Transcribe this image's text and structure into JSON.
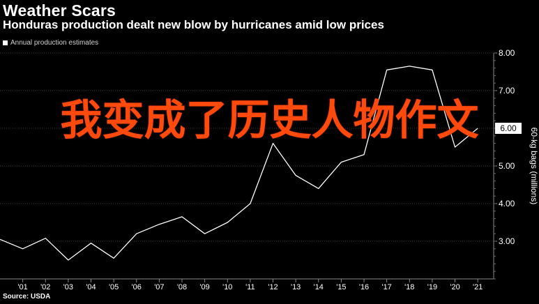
{
  "header": {
    "title": "Weather Scars",
    "subtitle": "Honduras production dealt new blow by hurricanes amid low prices",
    "legend_label": "Annual production estimates",
    "source": "Source: USDA"
  },
  "overlay_text": "我变成了历史人物作文",
  "colors": {
    "background": "#000000",
    "line": "#ffffff",
    "grid": "#3a3a3a",
    "overlay": "#ff4a0e"
  },
  "chart_data": {
    "type": "line",
    "title": "Weather Scars",
    "subtitle": "Honduras production dealt new blow by hurricanes amid low prices",
    "ylabel": "60-kg bags (millions)",
    "xlim": [
      2000,
      2021.7
    ],
    "ylim": [
      2.0,
      8.0
    ],
    "grid": true,
    "legend_position": "top-left",
    "x_ticks": [
      "'01",
      "'02",
      "'03",
      "'04",
      "'05",
      "'06",
      "'07",
      "'08",
      "'09",
      "'10",
      "'11",
      "'12",
      "'13",
      "'14",
      "'15",
      "'16",
      "'17",
      "'18",
      "'19",
      "'20",
      "'21"
    ],
    "x_tick_values": [
      2001,
      2002,
      2003,
      2004,
      2005,
      2006,
      2007,
      2008,
      2009,
      2010,
      2011,
      2012,
      2013,
      2014,
      2015,
      2016,
      2017,
      2018,
      2019,
      2020,
      2021
    ],
    "y_ticks": [
      "3.00",
      "4.00",
      "5.00",
      "6.00",
      "7.00",
      "8.00"
    ],
    "y_tick_values": [
      3,
      4,
      5,
      6,
      7,
      8
    ],
    "series": [
      {
        "name": "Annual production estimates",
        "x": [
          2000,
          2001,
          2002,
          2003,
          2004,
          2005,
          2006,
          2007,
          2008,
          2009,
          2010,
          2011,
          2012,
          2013,
          2014,
          2015,
          2016,
          2017,
          2018,
          2019,
          2020,
          2021
        ],
        "y": [
          3.05,
          2.8,
          3.08,
          2.5,
          2.95,
          2.55,
          3.2,
          3.45,
          3.65,
          3.2,
          3.5,
          4.0,
          5.6,
          4.75,
          4.4,
          5.1,
          5.3,
          7.55,
          7.65,
          7.55,
          5.5,
          6.0
        ]
      }
    ],
    "last_value_label": "6.00"
  }
}
